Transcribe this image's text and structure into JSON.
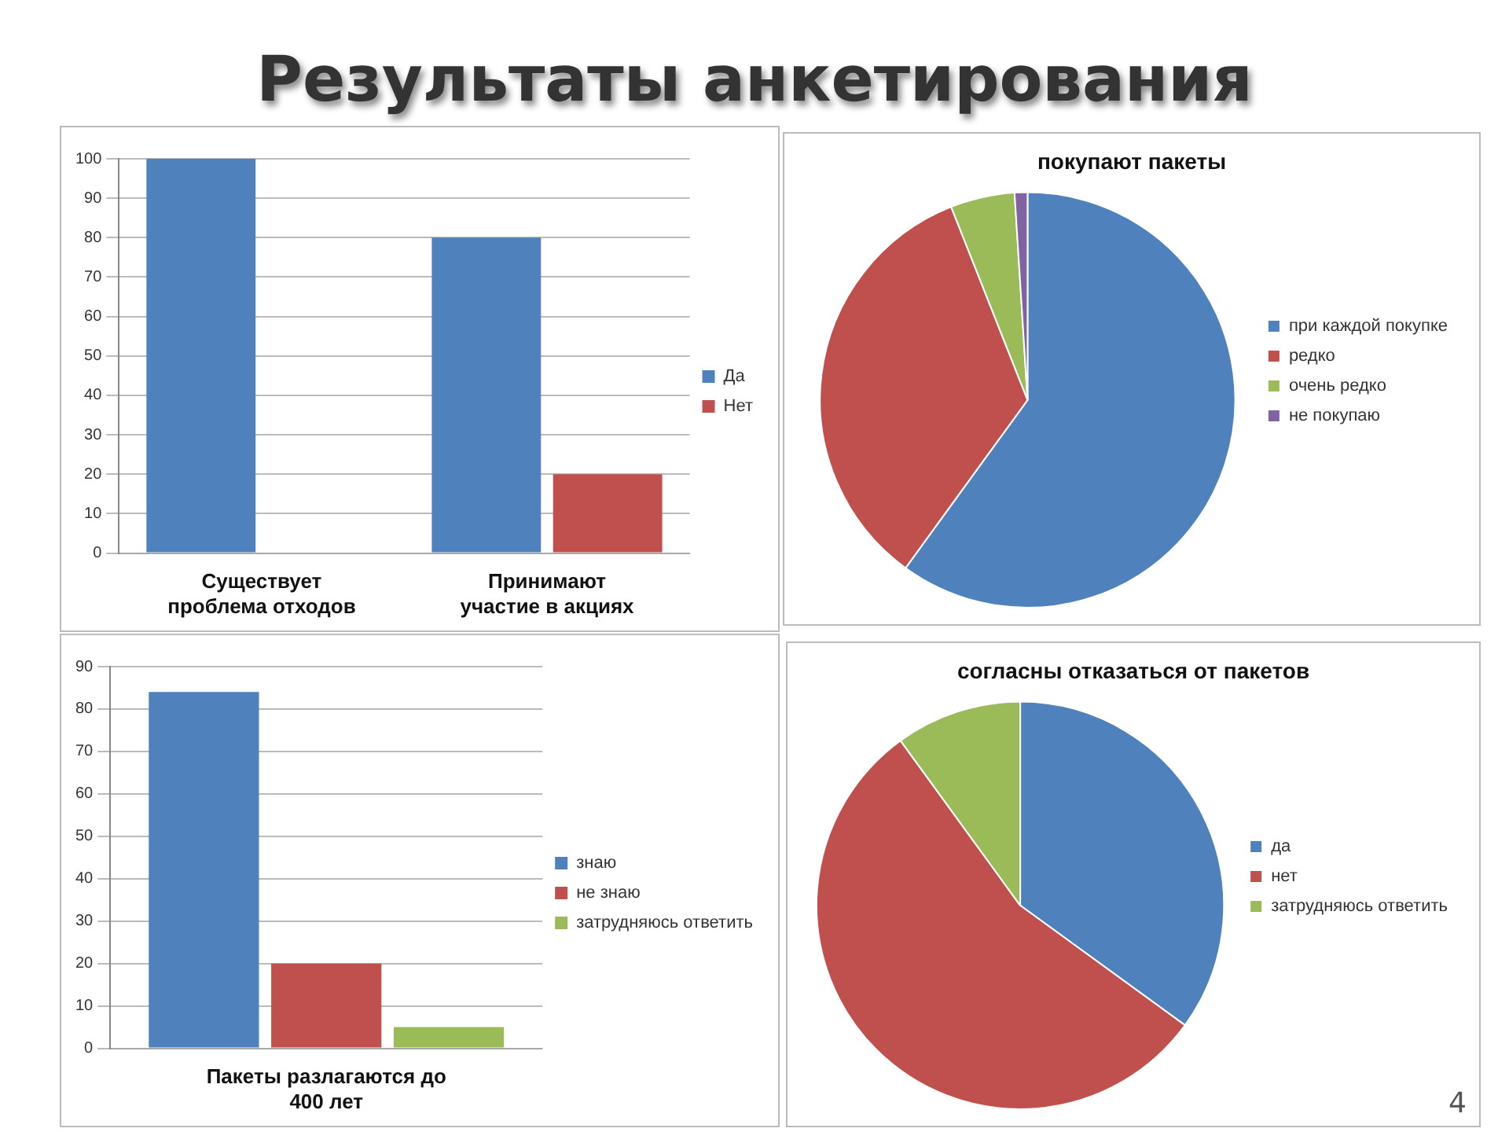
{
  "chart_data": [
    {
      "type": "bar",
      "title": "Результаты анкетирования",
      "categories": [
        "Существует проблема отходов",
        "Принимают участие в акциях"
      ],
      "series": [
        {
          "name": "Да",
          "color": "#4f81bd",
          "values": [
            100,
            80
          ]
        },
        {
          "name": "Нет",
          "color": "#c0504d",
          "values": [
            0,
            20
          ]
        }
      ],
      "ylim": [
        0,
        100
      ],
      "yticks": [
        0,
        10,
        20,
        30,
        40,
        50,
        60,
        70,
        80,
        90,
        100
      ],
      "grid": "y",
      "legend": "right"
    },
    {
      "type": "pie",
      "title": "покупают пакеты",
      "categories": [
        "при каждой покупке",
        "редко",
        "очень редко",
        "не покупаю"
      ],
      "values": [
        60,
        34,
        5,
        1
      ],
      "colors": [
        "#4f81bd",
        "#c0504d",
        "#9bbb59",
        "#8064a2"
      ],
      "legend": "right"
    },
    {
      "type": "bar",
      "categories": [
        "Пакеты разлагаются до 400 лет"
      ],
      "series": [
        {
          "name": "знаю",
          "color": "#4f81bd",
          "values": [
            84
          ]
        },
        {
          "name": "не знаю",
          "color": "#c0504d",
          "values": [
            20
          ]
        },
        {
          "name": "затрудняюсь ответить",
          "color": "#9bbb59",
          "values": [
            5
          ]
        }
      ],
      "ylim": [
        0,
        90
      ],
      "yticks": [
        0,
        10,
        20,
        30,
        40,
        50,
        60,
        70,
        80,
        90
      ],
      "grid": "y",
      "legend": "right"
    },
    {
      "type": "pie",
      "title": "согласны отказаться от пакетов",
      "categories": [
        "да",
        "нет",
        "затрудняюсь ответить"
      ],
      "values": [
        35,
        55,
        10
      ],
      "colors": [
        "#4f81bd",
        "#c0504d",
        "#9bbb59"
      ],
      "legend": "right",
      "annotations": [
        "4"
      ]
    }
  ]
}
